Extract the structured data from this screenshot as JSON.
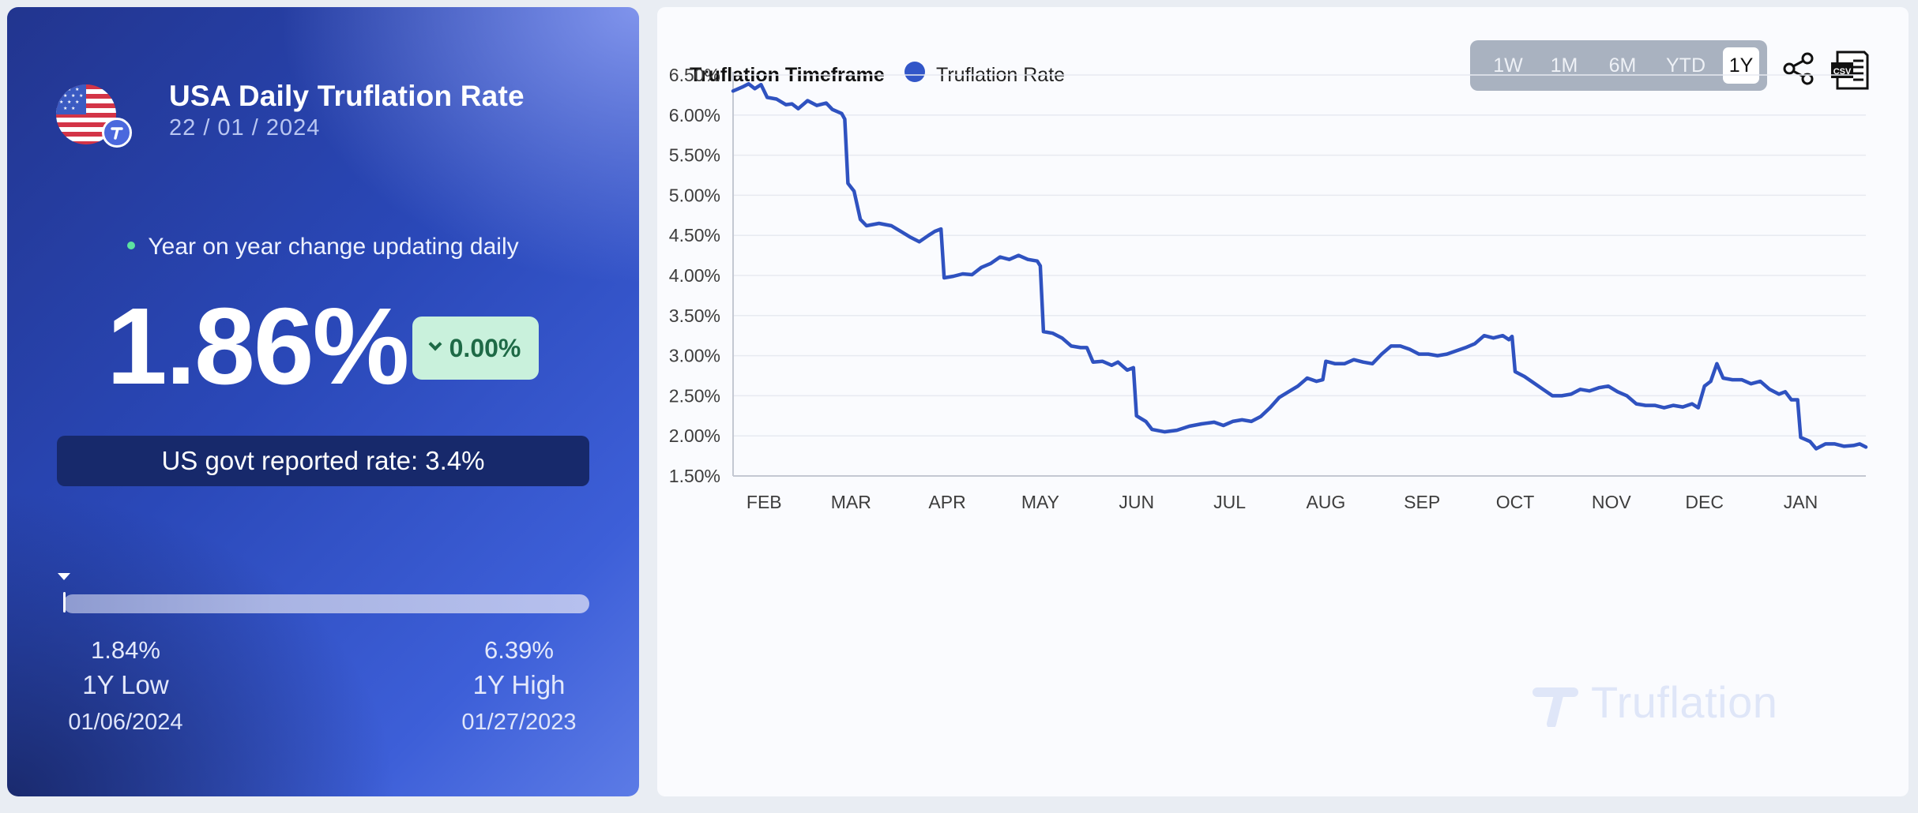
{
  "left": {
    "title": "USA Daily Truflation Rate",
    "date": "22 / 01 / 2024",
    "live_text": "Year on year change updating daily",
    "rate": "1.86%",
    "change": "0.00%",
    "govt_rate": "US govt reported rate: 3.4%",
    "range_marker_position": 0.0,
    "low": {
      "value": "1.84%",
      "label": "1Y Low",
      "date": "01/06/2024"
    },
    "high": {
      "value": "6.39%",
      "label": "1Y High",
      "date": "01/27/2023"
    },
    "colors": {
      "accent": "#3256c8",
      "positive": "#c9f1dc",
      "live": "#5de3a0"
    }
  },
  "toolbar": {
    "timeframe_label": "Truflation Timeframe",
    "buttons": [
      {
        "label": "1W",
        "active": false
      },
      {
        "label": "1M",
        "active": false
      },
      {
        "label": "6M",
        "active": false
      },
      {
        "label": "YTD",
        "active": false
      },
      {
        "label": "1Y",
        "active": true
      }
    ],
    "icons": [
      "share-icon",
      "csv-download-icon"
    ]
  },
  "watermark": "Truflation",
  "chart_data": {
    "type": "line",
    "xlabel": "",
    "ylabel": "",
    "ylim": [
      1.5,
      6.5
    ],
    "ytick_labels": [
      "6.50%",
      "6.00%",
      "5.50%",
      "5.00%",
      "4.50%",
      "4.00%",
      "3.50%",
      "3.00%",
      "2.50%",
      "2.00%",
      "1.50%"
    ],
    "yticks": [
      6.5,
      6.0,
      5.5,
      5.0,
      4.5,
      4.0,
      3.5,
      3.0,
      2.5,
      2.0,
      1.5
    ],
    "xlim": [
      "2023-01-22",
      "2024-01-22"
    ],
    "xtick_labels": [
      "FEB",
      "MAR",
      "APR",
      "MAY",
      "JUN",
      "JUL",
      "AUG",
      "SEP",
      "OCT",
      "NOV",
      "DEC",
      "JAN"
    ],
    "xtick_dates": [
      "2023-02-01",
      "2023-03-01",
      "2023-04-01",
      "2023-05-01",
      "2023-06-01",
      "2023-07-01",
      "2023-08-01",
      "2023-09-01",
      "2023-10-01",
      "2023-11-01",
      "2023-12-01",
      "2024-01-01"
    ],
    "grid": true,
    "legend": "top-left",
    "series": [
      {
        "name": "Truflation Rate",
        "color": "#2f52c0",
        "points": [
          [
            "2023-01-22",
            6.3
          ],
          [
            "2023-01-25",
            6.35
          ],
          [
            "2023-01-27",
            6.39
          ],
          [
            "2023-01-29",
            6.33
          ],
          [
            "2023-01-31",
            6.38
          ],
          [
            "2023-02-02",
            6.22
          ],
          [
            "2023-02-05",
            6.2
          ],
          [
            "2023-02-08",
            6.13
          ],
          [
            "2023-02-10",
            6.14
          ],
          [
            "2023-02-12",
            6.08
          ],
          [
            "2023-02-15",
            6.18
          ],
          [
            "2023-02-18",
            6.12
          ],
          [
            "2023-02-21",
            6.15
          ],
          [
            "2023-02-23",
            6.07
          ],
          [
            "2023-02-26",
            6.02
          ],
          [
            "2023-02-27",
            5.95
          ],
          [
            "2023-02-28",
            5.15
          ],
          [
            "2023-03-02",
            5.05
          ],
          [
            "2023-03-04",
            4.7
          ],
          [
            "2023-03-06",
            4.62
          ],
          [
            "2023-03-10",
            4.65
          ],
          [
            "2023-03-14",
            4.62
          ],
          [
            "2023-03-17",
            4.55
          ],
          [
            "2023-03-20",
            4.48
          ],
          [
            "2023-03-23",
            4.42
          ],
          [
            "2023-03-26",
            4.5
          ],
          [
            "2023-03-28",
            4.55
          ],
          [
            "2023-03-30",
            4.58
          ],
          [
            "2023-03-31",
            3.97
          ],
          [
            "2023-04-03",
            3.99
          ],
          [
            "2023-04-06",
            4.02
          ],
          [
            "2023-04-09",
            4.01
          ],
          [
            "2023-04-12",
            4.1
          ],
          [
            "2023-04-15",
            4.15
          ],
          [
            "2023-04-18",
            4.23
          ],
          [
            "2023-04-21",
            4.2
          ],
          [
            "2023-04-24",
            4.25
          ],
          [
            "2023-04-27",
            4.2
          ],
          [
            "2023-04-30",
            4.18
          ],
          [
            "2023-05-01",
            4.12
          ],
          [
            "2023-05-02",
            3.3
          ],
          [
            "2023-05-05",
            3.28
          ],
          [
            "2023-05-08",
            3.22
          ],
          [
            "2023-05-11",
            3.12
          ],
          [
            "2023-05-14",
            3.1
          ],
          [
            "2023-05-16",
            3.1
          ],
          [
            "2023-05-18",
            2.92
          ],
          [
            "2023-05-21",
            2.93
          ],
          [
            "2023-05-24",
            2.88
          ],
          [
            "2023-05-26",
            2.92
          ],
          [
            "2023-05-29",
            2.82
          ],
          [
            "2023-05-31",
            2.85
          ],
          [
            "2023-06-01",
            2.25
          ],
          [
            "2023-06-04",
            2.18
          ],
          [
            "2023-06-06",
            2.08
          ],
          [
            "2023-06-10",
            2.05
          ],
          [
            "2023-06-14",
            2.07
          ],
          [
            "2023-06-18",
            2.12
          ],
          [
            "2023-06-22",
            2.15
          ],
          [
            "2023-06-26",
            2.17
          ],
          [
            "2023-06-29",
            2.13
          ],
          [
            "2023-07-02",
            2.18
          ],
          [
            "2023-07-05",
            2.2
          ],
          [
            "2023-07-08",
            2.18
          ],
          [
            "2023-07-11",
            2.24
          ],
          [
            "2023-07-14",
            2.35
          ],
          [
            "2023-07-17",
            2.48
          ],
          [
            "2023-07-20",
            2.55
          ],
          [
            "2023-07-23",
            2.62
          ],
          [
            "2023-07-26",
            2.72
          ],
          [
            "2023-07-29",
            2.68
          ],
          [
            "2023-07-31",
            2.7
          ],
          [
            "2023-08-01",
            2.93
          ],
          [
            "2023-08-04",
            2.9
          ],
          [
            "2023-08-07",
            2.9
          ],
          [
            "2023-08-10",
            2.95
          ],
          [
            "2023-08-13",
            2.92
          ],
          [
            "2023-08-16",
            2.9
          ],
          [
            "2023-08-19",
            3.02
          ],
          [
            "2023-08-22",
            3.12
          ],
          [
            "2023-08-25",
            3.12
          ],
          [
            "2023-08-28",
            3.08
          ],
          [
            "2023-08-31",
            3.02
          ],
          [
            "2023-09-03",
            3.02
          ],
          [
            "2023-09-06",
            3.0
          ],
          [
            "2023-09-09",
            3.02
          ],
          [
            "2023-09-12",
            3.06
          ],
          [
            "2023-09-15",
            3.1
          ],
          [
            "2023-09-18",
            3.15
          ],
          [
            "2023-09-21",
            3.25
          ],
          [
            "2023-09-24",
            3.22
          ],
          [
            "2023-09-27",
            3.25
          ],
          [
            "2023-09-29",
            3.2
          ],
          [
            "2023-09-30",
            3.24
          ],
          [
            "2023-10-01",
            2.8
          ],
          [
            "2023-10-04",
            2.74
          ],
          [
            "2023-10-07",
            2.66
          ],
          [
            "2023-10-10",
            2.58
          ],
          [
            "2023-10-13",
            2.5
          ],
          [
            "2023-10-16",
            2.5
          ],
          [
            "2023-10-19",
            2.52
          ],
          [
            "2023-10-22",
            2.58
          ],
          [
            "2023-10-25",
            2.56
          ],
          [
            "2023-10-28",
            2.6
          ],
          [
            "2023-10-31",
            2.62
          ],
          [
            "2023-11-03",
            2.55
          ],
          [
            "2023-11-06",
            2.5
          ],
          [
            "2023-11-09",
            2.4
          ],
          [
            "2023-11-12",
            2.38
          ],
          [
            "2023-11-15",
            2.38
          ],
          [
            "2023-11-18",
            2.35
          ],
          [
            "2023-11-21",
            2.38
          ],
          [
            "2023-11-24",
            2.36
          ],
          [
            "2023-11-27",
            2.4
          ],
          [
            "2023-11-29",
            2.35
          ],
          [
            "2023-12-01",
            2.62
          ],
          [
            "2023-12-03",
            2.68
          ],
          [
            "2023-12-05",
            2.9
          ],
          [
            "2023-12-07",
            2.72
          ],
          [
            "2023-12-10",
            2.7
          ],
          [
            "2023-12-13",
            2.7
          ],
          [
            "2023-12-16",
            2.65
          ],
          [
            "2023-12-19",
            2.68
          ],
          [
            "2023-12-22",
            2.58
          ],
          [
            "2023-12-25",
            2.52
          ],
          [
            "2023-12-27",
            2.55
          ],
          [
            "2023-12-29",
            2.45
          ],
          [
            "2023-12-31",
            2.45
          ],
          [
            "2024-01-01",
            1.98
          ],
          [
            "2024-01-04",
            1.93
          ],
          [
            "2024-01-06",
            1.84
          ],
          [
            "2024-01-09",
            1.9
          ],
          [
            "2024-01-12",
            1.9
          ],
          [
            "2024-01-15",
            1.87
          ],
          [
            "2024-01-18",
            1.88
          ],
          [
            "2024-01-20",
            1.9
          ],
          [
            "2024-01-22",
            1.86
          ]
        ]
      }
    ]
  }
}
